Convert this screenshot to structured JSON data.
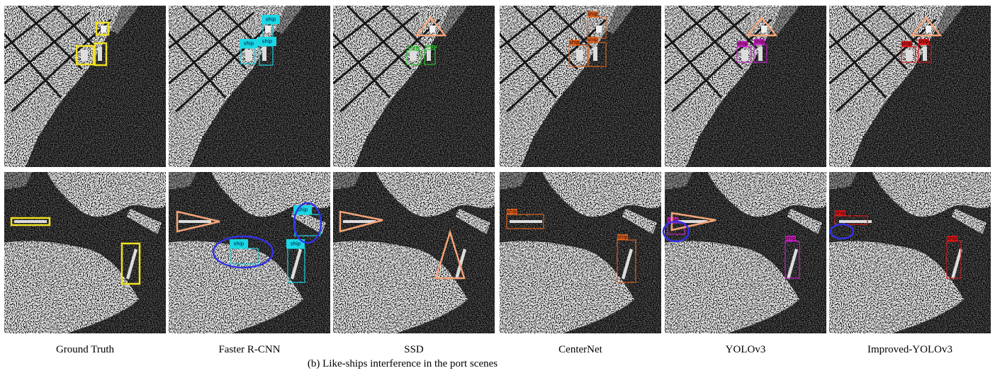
{
  "figure": {
    "columns": [
      "Ground Truth",
      "Faster R-CNN",
      "SSD",
      "CenterNet",
      "YOLOv3",
      "Improved-YOLOv3"
    ],
    "box_label": "ship",
    "caption": "(b) Like-ships interference in the port scenes"
  }
}
